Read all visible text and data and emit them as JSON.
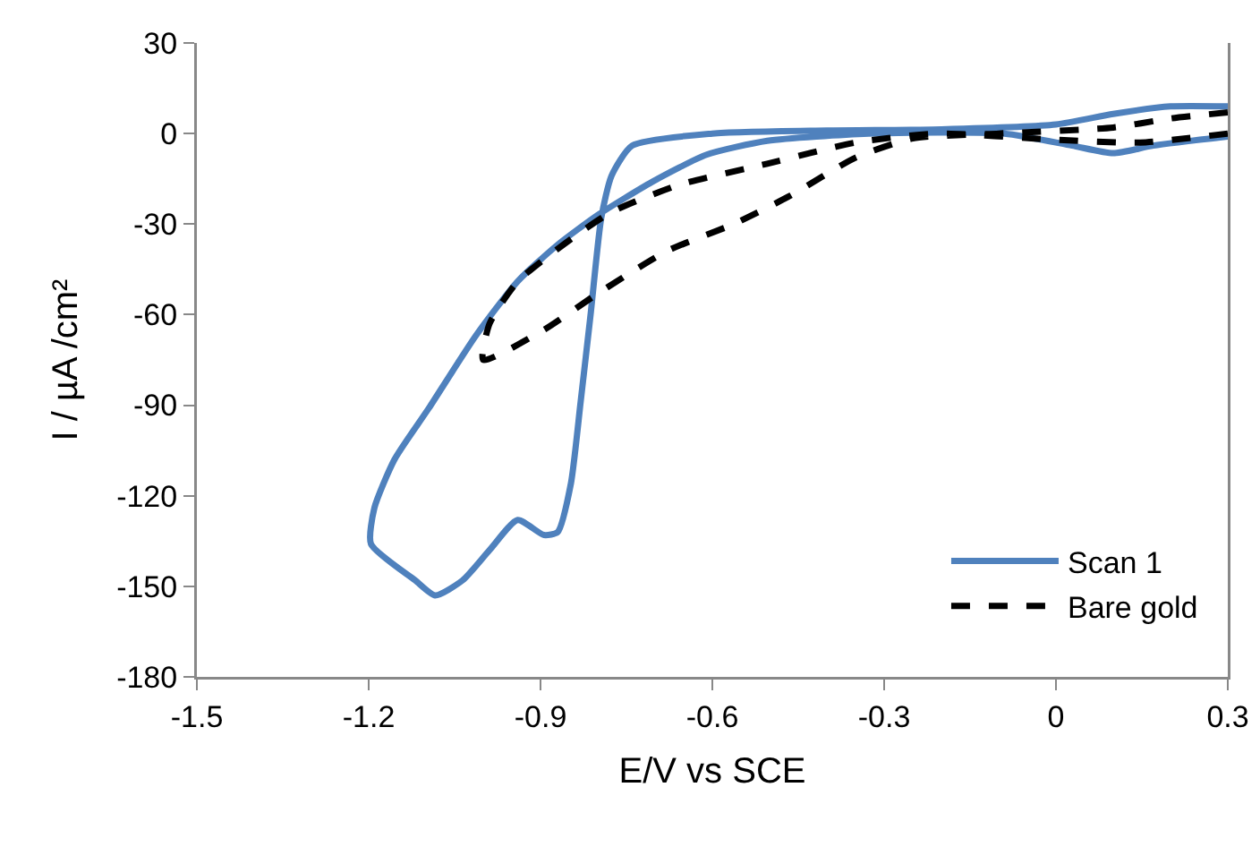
{
  "chart_data": {
    "type": "line",
    "xlabel": "E/V vs SCE",
    "ylabel": "I / µA /cm²",
    "xlim": [
      -1.5,
      0.3
    ],
    "xticks": [
      -1.5,
      -1.2,
      -0.9,
      -0.6,
      -0.3,
      0,
      0.3
    ],
    "ylim": [
      -180,
      30
    ],
    "yticks": [
      30,
      0,
      -30,
      -60,
      -90,
      -120,
      -150,
      -180
    ],
    "grid": false,
    "legend": "bottom right",
    "marker": "none",
    "series": [
      {
        "name": "Scan 1",
        "color": "#4f81bd",
        "line_style": "solid",
        "x": [
          0.3,
          0.2,
          0.1,
          0,
          -0.2,
          -0.4,
          -0.6,
          -0.74,
          -0.776,
          -0.794,
          -0.812,
          -0.83,
          -0.847,
          -0.87,
          -0.894,
          -0.94,
          -0.989,
          -1.036,
          -1.084,
          -1.119,
          -1.196,
          -1.19,
          -1.155,
          -1.095,
          -1.013,
          -0.94,
          -0.871,
          -0.8,
          -0.705,
          -0.61,
          -0.504,
          -0.327,
          -0.09,
          0.028,
          0.1,
          0.17,
          0.3
        ],
        "values": [
          9,
          9,
          6.5,
          3,
          1.4,
          1,
          0,
          -4,
          -14,
          -28,
          -59,
          -89,
          -116,
          -132,
          -133,
          -128,
          -138,
          -148,
          -153,
          -148,
          -136,
          -124,
          -108,
          -91,
          -67,
          -49,
          -37,
          -27,
          -16,
          -7,
          -2.4,
          0,
          0,
          -4,
          -6.5,
          -4,
          -1
        ]
      },
      {
        "name": "Bare gold",
        "color": "#000000",
        "line_style": "dashed",
        "x": [
          0.3,
          0.2,
          0.1,
          -0.1,
          -0.25,
          -0.35,
          -0.468,
          -0.563,
          -0.68,
          -0.8,
          -0.894,
          -1.0,
          -0.989,
          -0.94,
          -0.847,
          -0.776,
          -0.658,
          -0.504,
          -0.35,
          -0.208,
          -0.007,
          0.147,
          0.3
        ],
        "values": [
          7,
          5,
          2,
          0,
          -1.6,
          -8,
          -21,
          -30,
          -39,
          -53,
          -65,
          -75,
          -63,
          -49,
          -35,
          -26,
          -17,
          -10,
          -3,
          0,
          -2,
          -3,
          0
        ]
      }
    ]
  }
}
